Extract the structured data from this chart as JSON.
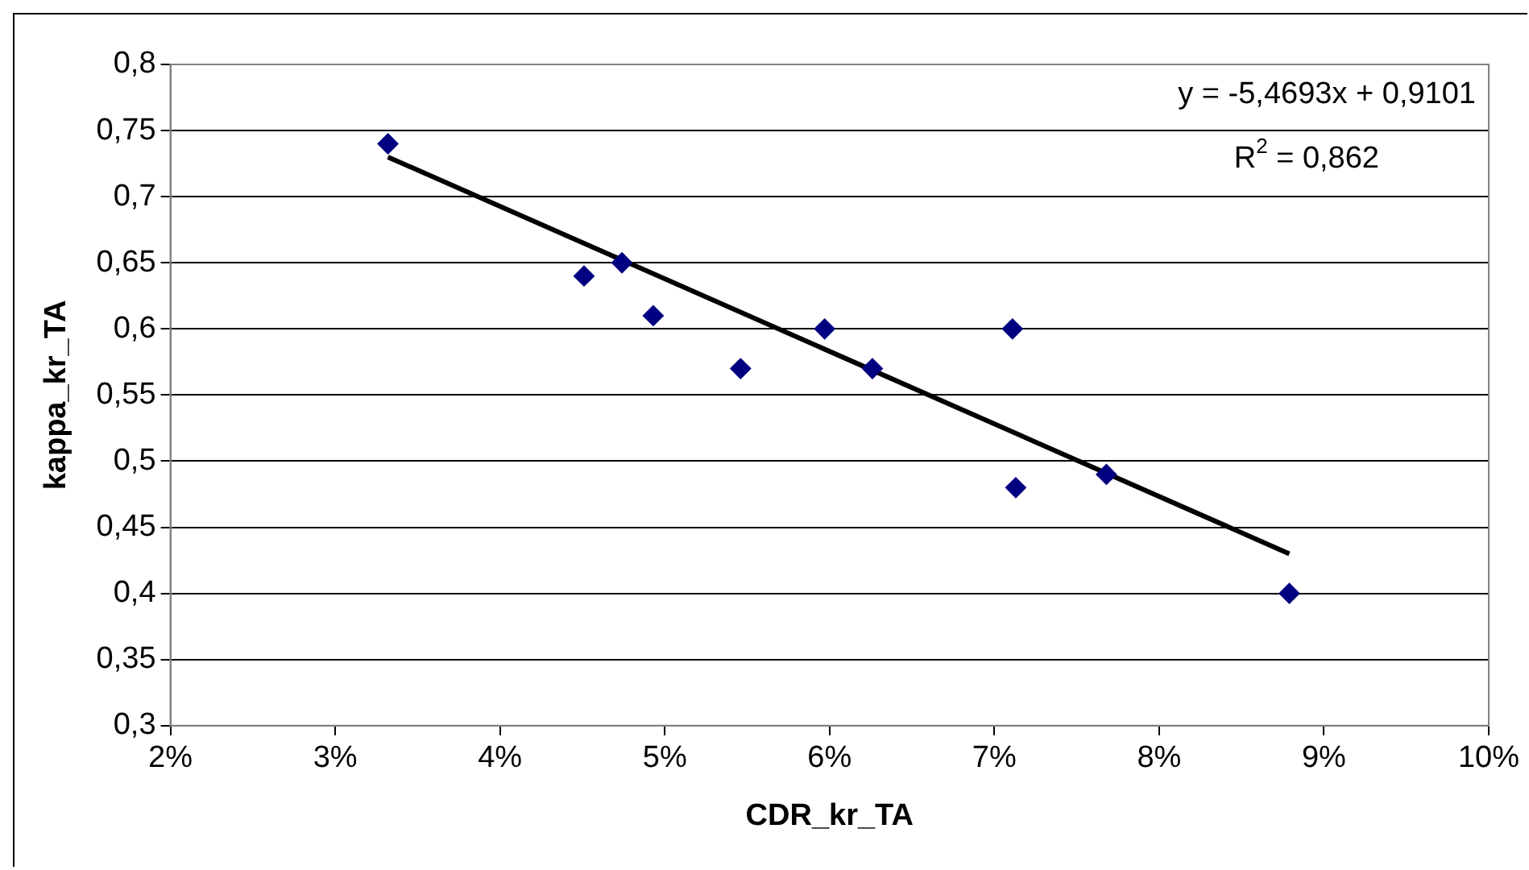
{
  "chart_data": {
    "type": "scatter",
    "xlabel": "CDR_kr_TA",
    "ylabel": "kappa_kr_TA",
    "x": [
      0.0332,
      0.0451,
      0.0474,
      0.0493,
      0.0546,
      0.0597,
      0.0626,
      0.0711,
      0.0713,
      0.0768,
      0.0879
    ],
    "series": [
      {
        "type": "scatter",
        "marker": "diamond",
        "color": "#000080",
        "values": [
          0.74,
          0.64,
          0.65,
          0.61,
          0.57,
          0.6,
          0.57,
          0.6,
          0.48,
          0.49,
          0.4
        ]
      },
      {
        "type": "line",
        "marker": "none",
        "color": "#000000",
        "x": [
          0.0332,
          0.0879
        ],
        "values": [
          0.73,
          0.43
        ]
      }
    ],
    "xlim": [
      0.02,
      0.1
    ],
    "xticks": [
      {
        "value": 0.02,
        "label": "2%"
      },
      {
        "value": 0.03,
        "label": "3%"
      },
      {
        "value": 0.04,
        "label": "4%"
      },
      {
        "value": 0.05,
        "label": "5%"
      },
      {
        "value": 0.06,
        "label": "6%"
      },
      {
        "value": 0.07,
        "label": "7%"
      },
      {
        "value": 0.08,
        "label": "8%"
      },
      {
        "value": 0.09,
        "label": "9%"
      },
      {
        "value": 0.1,
        "label": "10%"
      }
    ],
    "ylim": [
      0.3,
      0.8
    ],
    "yticks": [
      {
        "value": 0.3,
        "label": "0,3"
      },
      {
        "value": 0.35,
        "label": "0,35"
      },
      {
        "value": 0.4,
        "label": "0,4"
      },
      {
        "value": 0.45,
        "label": "0,45"
      },
      {
        "value": 0.5,
        "label": "0,5"
      },
      {
        "value": 0.55,
        "label": "0,55"
      },
      {
        "value": 0.6,
        "label": "0,6"
      },
      {
        "value": 0.65,
        "label": "0,65"
      },
      {
        "value": 0.7,
        "label": "0,7"
      },
      {
        "value": 0.75,
        "label": "0,75"
      },
      {
        "value": 0.8,
        "label": "0,8"
      }
    ],
    "grid": "y",
    "legend": false,
    "annotations": [
      "y = -5,4693x + 0,9101",
      "R$^{2}$ = 0,862"
    ]
  }
}
